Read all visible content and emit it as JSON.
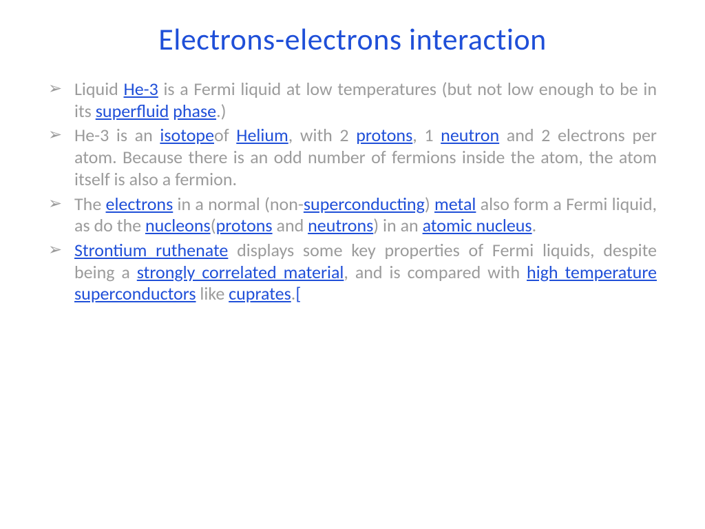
{
  "colors": {
    "title": "#1f4fd8",
    "body_text": "#9b9b9b",
    "link": "#1f4fd8",
    "bullet": "#9b9b9b",
    "background": "#ffffff"
  },
  "typography": {
    "title_fontsize": 44,
    "body_fontsize": 26,
    "font_family": "Calibri"
  },
  "title": "Electrons-electrons interaction",
  "bullets": {
    "b1": {
      "t1": "Liquid ",
      "l1": "He-3",
      "t2": " is a Fermi liquid at low temperatures (but not low enough to be in its ",
      "l2": "superfluid",
      "t3": " ",
      "l3": "phase",
      "t4": ".)"
    },
    "b2": {
      "t1": " He-3 is an ",
      "l1": "isotope",
      "t2": "of ",
      "l2": "Helium",
      "t3": ", with 2 ",
      "l3": "protons",
      "t4": ", 1 ",
      "l4": "neutron",
      "t5": " and 2 electrons per atom. Because there is an odd number of fermions inside the atom, the atom itself is also a fermion."
    },
    "b3": {
      "t1": "The ",
      "l1": "electrons",
      "t2": " in a normal (non-",
      "l2": "superconducting",
      "t3": ") ",
      "l3": "metal",
      "t4": " also form a Fermi liquid, as do the ",
      "l4": "nucleons",
      "t5": "(",
      "l5": "protons",
      "t6": " and ",
      "l6": "neutrons",
      "t7": ") in an ",
      "l7": "atomic nucleus",
      "t8": "."
    },
    "b4": {
      "l1": "Strontium ruthenate",
      "t1": " displays some key properties of Fermi liquids, despite being a ",
      "l2": "strongly correlated material",
      "t2": ", and is compared with ",
      "l3": "high temperature superconductors",
      "t3": " like ",
      "l4": "cuprates",
      "t4": ".",
      "l5": "["
    }
  }
}
